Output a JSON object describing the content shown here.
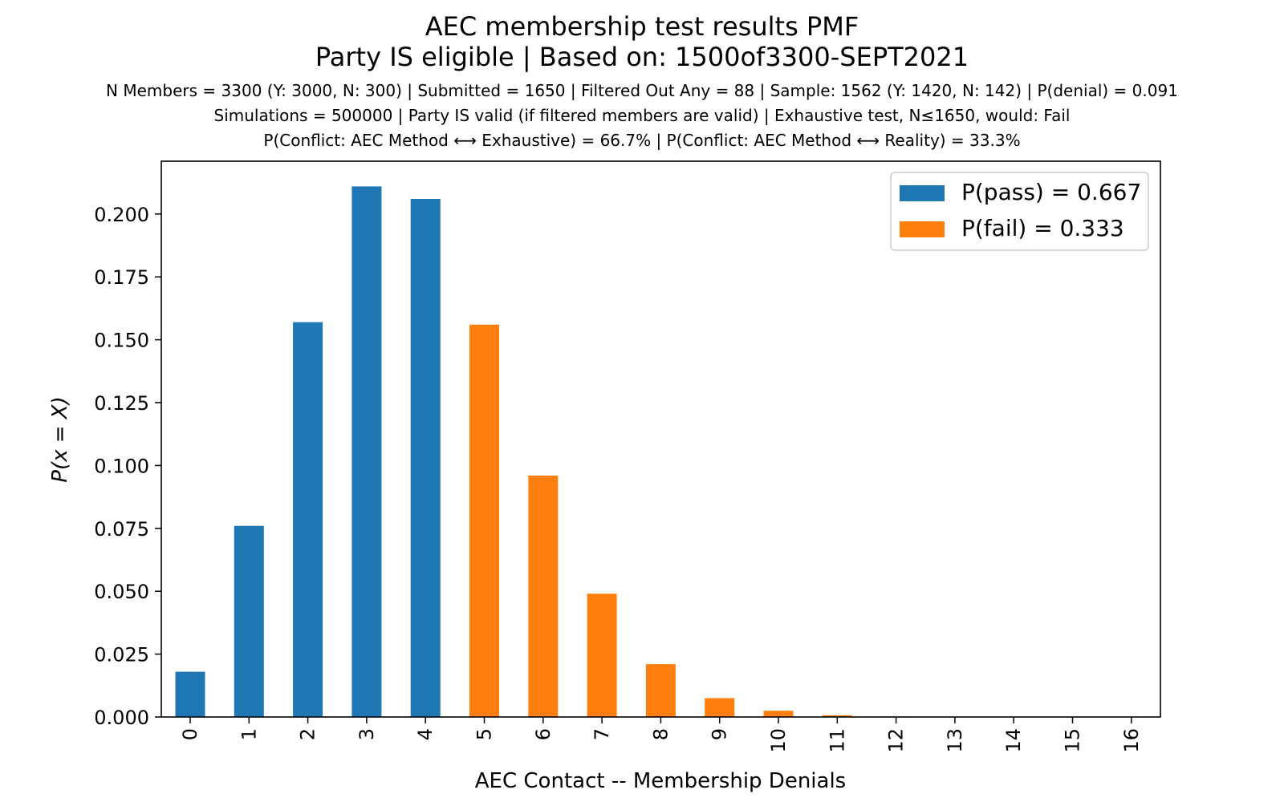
{
  "chart_data": {
    "type": "bar",
    "title": "AEC membership test results PMF",
    "title_line2": "Party IS eligible | Based on: 1500of3300-SEPT2021",
    "subtitle_lines": [
      "N Members = 3300 (Y: 3000, N: 300) | Submitted = 1650 | Filtered Out Any = 88 | Sample: 1562 (Y: 1420, N: 142) | P(denial) = 0.091",
      "Simulations = 500000 | Party IS valid (if filtered members are valid) | Exhaustive test, N≤1650, would: Fail",
      "P(Conflict: AEC Method ⟷ Exhaustive) = 66.7% | P(Conflict: AEC Method ⟷ Reality) = 33.3%"
    ],
    "xlabel": "AEC Contact -- Membership Denials",
    "ylabel": "P(x = X)",
    "categories": [
      "0",
      "1",
      "2",
      "3",
      "4",
      "5",
      "6",
      "7",
      "8",
      "9",
      "10",
      "11",
      "12",
      "13",
      "14",
      "15",
      "16"
    ],
    "yticks": [
      "0.000",
      "0.025",
      "0.050",
      "0.075",
      "0.100",
      "0.125",
      "0.150",
      "0.175",
      "0.200"
    ],
    "ylim": [
      0,
      0.221
    ],
    "series": [
      {
        "name": "P(pass) = 0.667",
        "color": "#1f77b4",
        "values": [
          0.018,
          0.076,
          0.157,
          0.211,
          0.206,
          0,
          0,
          0,
          0,
          0,
          0,
          0,
          0,
          0,
          0,
          0,
          0
        ]
      },
      {
        "name": "P(fail) = 0.333",
        "color": "#ff7f0e",
        "values": [
          0,
          0,
          0,
          0,
          0,
          0.156,
          0.096,
          0.049,
          0.021,
          0.0075,
          0.0025,
          0.0007,
          0.0002,
          5e-05,
          1e-05,
          0,
          0
        ]
      }
    ],
    "legend_placement": "top-right",
    "grid": false
  }
}
